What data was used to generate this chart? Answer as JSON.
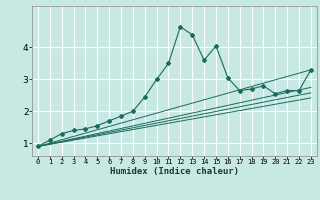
{
  "title": "",
  "xlabel": "Humidex (Indice chaleur)",
  "xlim": [
    -0.5,
    23.5
  ],
  "ylim": [
    0.6,
    5.3
  ],
  "yticks": [
    1,
    2,
    3,
    4
  ],
  "xticks": [
    0,
    1,
    2,
    3,
    4,
    5,
    6,
    7,
    8,
    9,
    10,
    11,
    12,
    13,
    14,
    15,
    16,
    17,
    18,
    19,
    20,
    21,
    22,
    23
  ],
  "bg_color": "#c8e8e4",
  "grid_color": "#ffffff",
  "line_color": "#1a6b5a",
  "series": [
    [
      0.0,
      0.9
    ],
    [
      1.0,
      1.1
    ],
    [
      2.0,
      1.3
    ],
    [
      3.0,
      1.4
    ],
    [
      4.0,
      1.45
    ],
    [
      5.0,
      1.55
    ],
    [
      6.0,
      1.7
    ],
    [
      7.0,
      1.85
    ],
    [
      8.0,
      2.0
    ],
    [
      9.0,
      2.45
    ],
    [
      10.0,
      3.0
    ],
    [
      11.0,
      3.5
    ],
    [
      12.0,
      4.65
    ],
    [
      13.0,
      4.4
    ],
    [
      14.0,
      3.6
    ],
    [
      15.0,
      4.05
    ],
    [
      16.0,
      3.05
    ],
    [
      17.0,
      2.65
    ],
    [
      18.0,
      2.7
    ],
    [
      19.0,
      2.8
    ],
    [
      20.0,
      2.55
    ],
    [
      21.0,
      2.65
    ],
    [
      22.0,
      2.65
    ],
    [
      23.0,
      3.3
    ]
  ],
  "ref_lines": [
    [
      [
        0,
        0.9
      ],
      [
        23,
        3.3
      ]
    ],
    [
      [
        0,
        0.9
      ],
      [
        23,
        2.75
      ]
    ],
    [
      [
        0,
        0.9
      ],
      [
        23,
        2.58
      ]
    ],
    [
      [
        0,
        0.9
      ],
      [
        23,
        2.42
      ]
    ]
  ]
}
